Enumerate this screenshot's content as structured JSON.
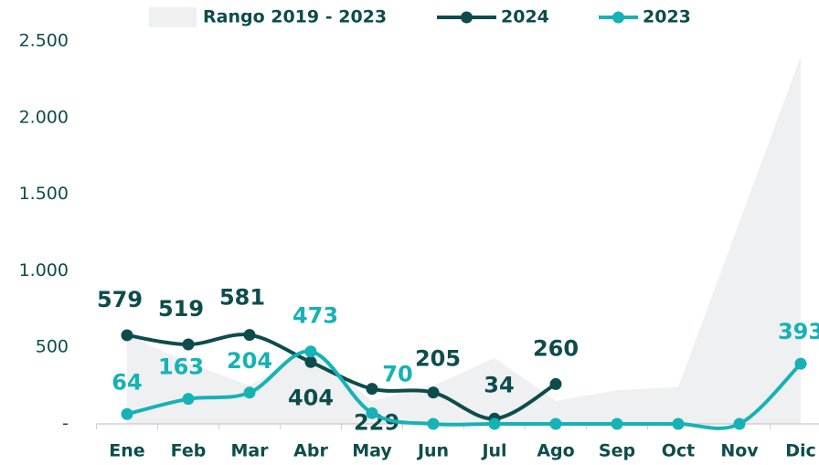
{
  "chart_data": {
    "type": "line",
    "categories": [
      "Ene",
      "Feb",
      "Mar",
      "Abr",
      "May",
      "Jun",
      "Jul",
      "Ago",
      "Sep",
      "Oct",
      "Nov",
      "Dic"
    ],
    "range": {
      "name": "Rango 2019 - 2023",
      "color": "#eff0f2",
      "low": [
        0,
        0,
        0,
        0,
        0,
        0,
        0,
        0,
        0,
        0,
        0,
        0
      ],
      "high": [
        580,
        400,
        250,
        480,
        150,
        250,
        430,
        150,
        220,
        240,
        1320,
        2400
      ]
    },
    "series": [
      {
        "name": "2024",
        "color": "#0e4c4c",
        "values": [
          579,
          519,
          581,
          404,
          229,
          205,
          34,
          260,
          null,
          null,
          null,
          null
        ]
      },
      {
        "name": "2023",
        "color": "#16b2b5",
        "values": [
          64,
          163,
          204,
          473,
          70,
          0,
          0,
          0,
          0,
          0,
          0,
          393
        ],
        "value_labels": [
          "64",
          "163",
          "204",
          "473",
          "70",
          null,
          null,
          null,
          null,
          null,
          null,
          "393"
        ]
      }
    ],
    "ylim": [
      0,
      2500
    ],
    "yticks": [
      {
        "value": 0,
        "label": "-"
      },
      500,
      {
        "value": 1000,
        "label": "1.000"
      },
      {
        "value": 1500,
        "label": "1.500"
      },
      {
        "value": 2000,
        "label": "2.000"
      },
      {
        "value": 2500,
        "label": "2.500"
      }
    ]
  }
}
